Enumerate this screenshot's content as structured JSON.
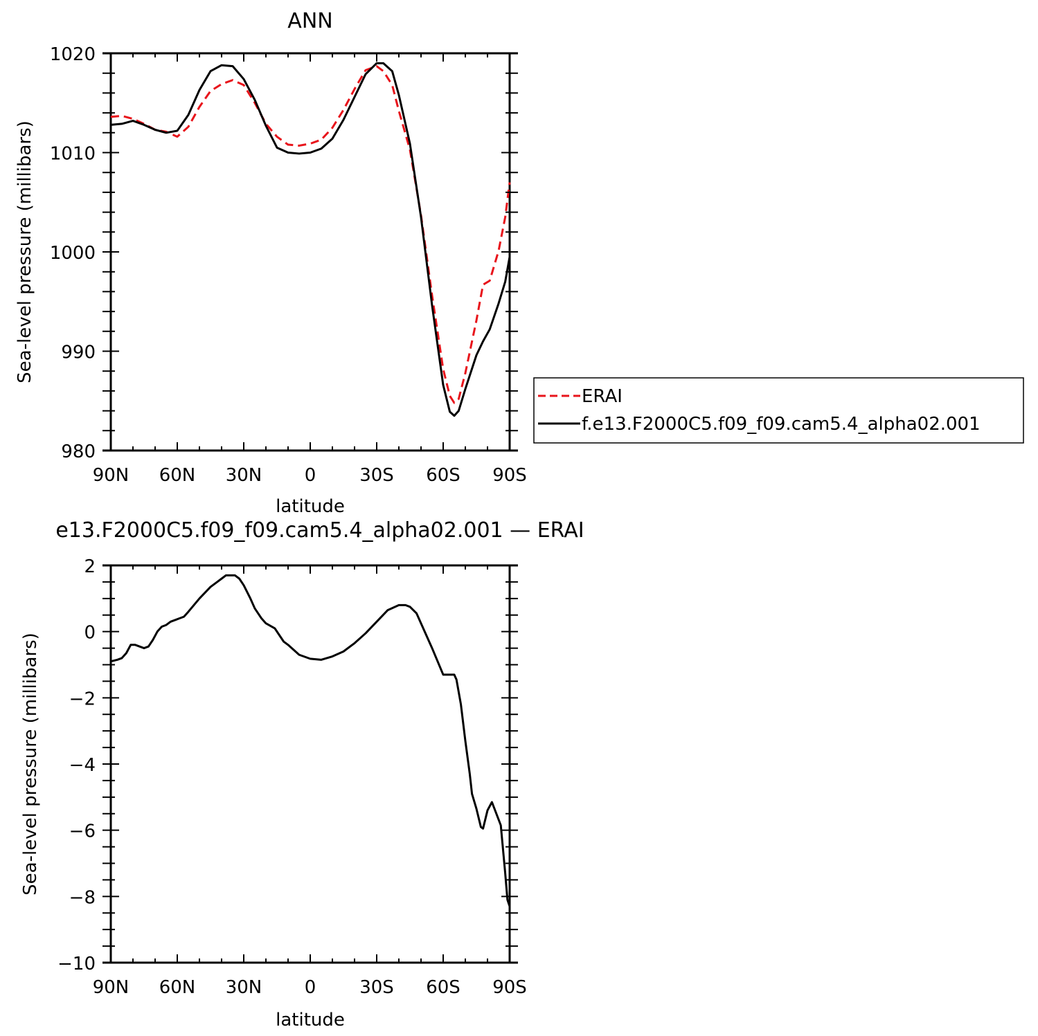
{
  "chart_data": [
    {
      "type": "line",
      "title": "ANN",
      "xlabel": "latitude",
      "ylabel": "Sea-level pressure (millibars)",
      "xlim": [
        90,
        -90
      ],
      "ylim": [
        980,
        1020
      ],
      "x_ticks": [
        90,
        60,
        30,
        0,
        -30,
        -60,
        -90
      ],
      "x_tick_labels": [
        "90N",
        "60N",
        "30N",
        "0",
        "30S",
        "60S",
        "90S"
      ],
      "y_ticks": [
        980,
        990,
        1000,
        1010,
        1020
      ],
      "y_tick_labels": [
        "980",
        "990",
        "1000",
        "1010",
        "1020"
      ],
      "legend_position": "right",
      "series": [
        {
          "name": "ERAI",
          "color": "#e8141b",
          "dash": "dashed",
          "x": [
            90,
            85,
            80,
            75,
            70,
            65,
            60,
            55,
            50,
            45,
            40,
            35,
            30,
            25,
            20,
            15,
            10,
            5,
            0,
            -5,
            -10,
            -15,
            -20,
            -25,
            -30,
            -33,
            -37,
            -40,
            -45,
            -50,
            -55,
            -60,
            -63,
            -65,
            -67,
            -70,
            -75,
            -78,
            -81,
            -85,
            -88,
            -90
          ],
          "y": [
            1013.6,
            1013.7,
            1013.4,
            1012.9,
            1012.3,
            1012.1,
            1011.6,
            1012.6,
            1014.6,
            1016.2,
            1016.9,
            1017.3,
            1016.8,
            1015.0,
            1012.9,
            1011.6,
            1010.8,
            1010.7,
            1010.9,
            1011.3,
            1012.5,
            1014.3,
            1016.4,
            1018.3,
            1018.7,
            1018.2,
            1016.8,
            1014.2,
            1010.3,
            1003.7,
            995.6,
            988.2,
            985.5,
            984.8,
            985.2,
            987.8,
            993.1,
            996.7,
            997.1,
            1000.1,
            1003.5,
            1007.0
          ]
        },
        {
          "name": "f.e13.F2000C5.f09_f09.cam5.4_alpha02.001",
          "color": "#000000",
          "dash": "solid",
          "x": [
            90,
            85,
            80,
            75,
            70,
            65,
            60,
            55,
            50,
            45,
            40,
            35,
            30,
            25,
            20,
            15,
            10,
            5,
            0,
            -5,
            -10,
            -15,
            -20,
            -25,
            -30,
            -33,
            -37,
            -40,
            -45,
            -50,
            -55,
            -60,
            -63,
            -65,
            -67,
            -70,
            -75,
            -78,
            -81,
            -85,
            -88,
            -90
          ],
          "y": [
            1012.8,
            1012.9,
            1013.2,
            1012.8,
            1012.3,
            1012.0,
            1012.2,
            1013.8,
            1016.3,
            1018.2,
            1018.8,
            1018.7,
            1017.4,
            1015.3,
            1012.7,
            1010.5,
            1010.0,
            1009.9,
            1010.0,
            1010.4,
            1011.4,
            1013.3,
            1015.6,
            1017.9,
            1019.0,
            1019.0,
            1018.2,
            1015.8,
            1010.9,
            1003.5,
            994.6,
            986.6,
            983.9,
            983.5,
            984.0,
            986.2,
            989.6,
            991.0,
            992.2,
            994.8,
            997.0,
            999.5
          ]
        }
      ]
    },
    {
      "type": "line",
      "title": "e13.F2000C5.f09_f09.cam5.4_alpha02.001 — ERAI",
      "xlabel": "latitude",
      "ylabel": "Sea-level pressure (millibars)",
      "xlim": [
        90,
        -90
      ],
      "ylim": [
        -10,
        2
      ],
      "x_ticks": [
        90,
        60,
        30,
        0,
        -30,
        -60,
        -90
      ],
      "x_tick_labels": [
        "90N",
        "60N",
        "30N",
        "0",
        "30S",
        "60S",
        "90S"
      ],
      "y_ticks": [
        2,
        0,
        -2,
        -4,
        -6,
        -8,
        -10
      ],
      "y_tick_labels": [
        "2",
        "0",
        "−2",
        "−4",
        "−6",
        "−8",
        "−10"
      ],
      "series": [
        {
          "color": "#000000",
          "dash": "solid",
          "x": [
            90,
            87,
            85,
            83,
            81,
            79,
            77,
            75,
            73,
            71,
            69,
            67,
            65,
            63,
            61,
            59,
            57,
            55,
            50,
            45,
            42,
            40,
            38,
            36,
            34,
            32,
            30,
            27,
            25,
            22,
            20,
            16,
            12,
            10,
            5,
            0,
            -5,
            -10,
            -15,
            -20,
            -25,
            -30,
            -35,
            -40,
            -43,
            -45,
            -48,
            -50,
            -55,
            -60,
            -63,
            -65,
            -66,
            -68,
            -70,
            -72,
            -73,
            -75,
            -77,
            -78,
            -80,
            -82,
            -84,
            -86,
            -88,
            -89,
            -90
          ],
          "y": [
            -0.9,
            -0.85,
            -0.8,
            -0.65,
            -0.4,
            -0.4,
            -0.45,
            -0.5,
            -0.45,
            -0.25,
            0.0,
            0.15,
            0.2,
            0.3,
            0.35,
            0.4,
            0.45,
            0.6,
            1.0,
            1.35,
            1.5,
            1.6,
            1.7,
            1.7,
            1.7,
            1.6,
            1.4,
            1.0,
            0.7,
            0.4,
            0.25,
            0.1,
            -0.3,
            -0.4,
            -0.7,
            -0.82,
            -0.85,
            -0.75,
            -0.6,
            -0.35,
            -0.05,
            0.3,
            0.65,
            0.8,
            0.8,
            0.75,
            0.55,
            0.25,
            -0.5,
            -1.3,
            -1.3,
            -1.3,
            -1.45,
            -2.2,
            -3.3,
            -4.3,
            -4.9,
            -5.35,
            -5.9,
            -5.95,
            -5.4,
            -5.15,
            -5.5,
            -5.85,
            -7.3,
            -8.1,
            -8.3
          ]
        }
      ]
    }
  ]
}
